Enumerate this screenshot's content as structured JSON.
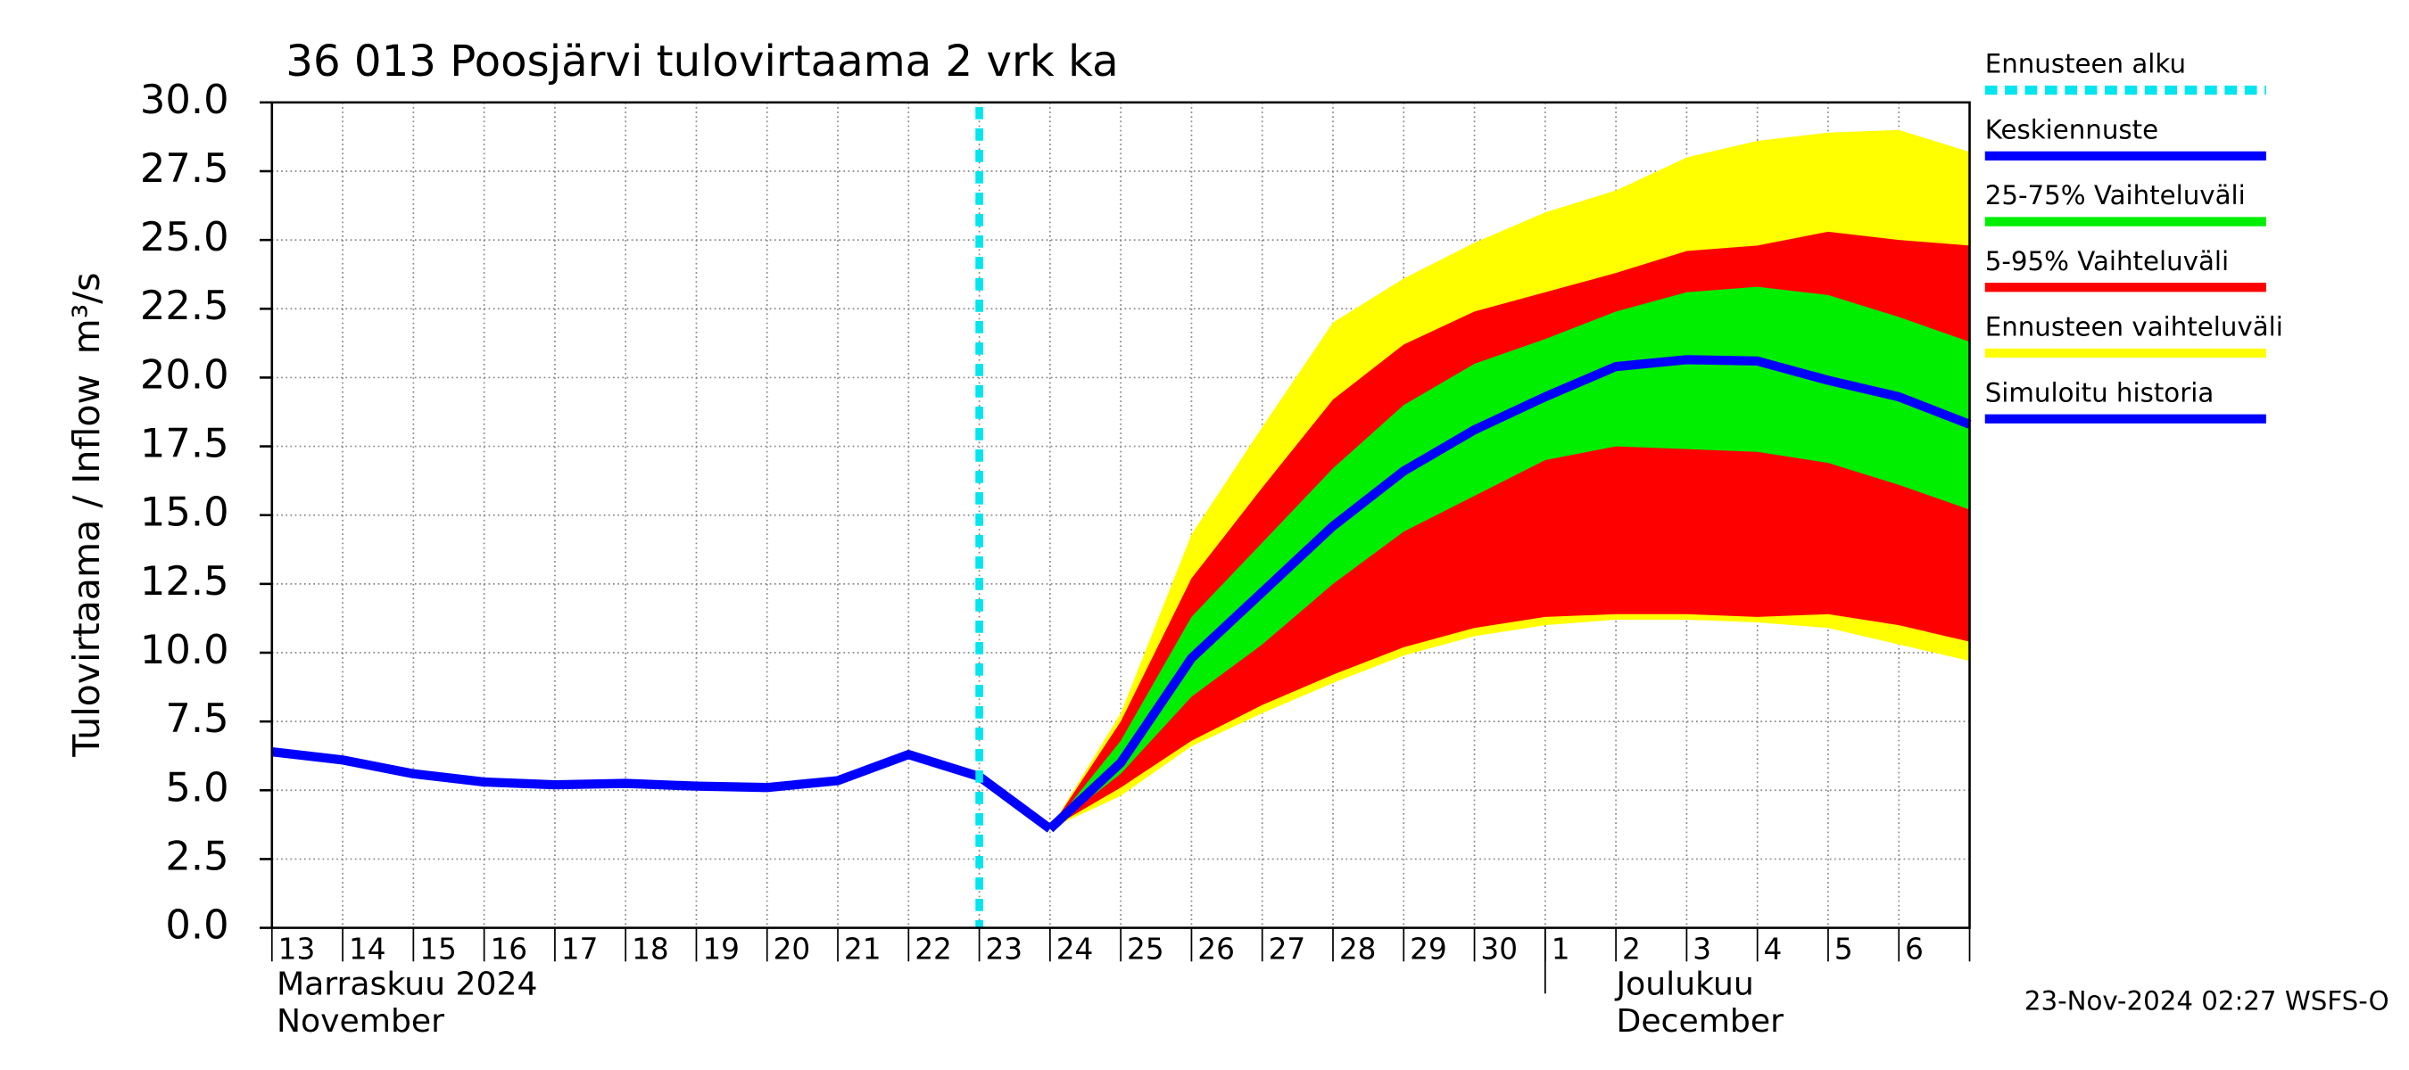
{
  "chart_data": {
    "type": "line",
    "title": "36 013 Poosjärvi tulovirtaama 2 vrk ka",
    "y_label": "Tulovirtaama / Inflow",
    "y_unit": "m³/s",
    "categories": [
      "13",
      "14",
      "15",
      "16",
      "17",
      "18",
      "19",
      "20",
      "21",
      "22",
      "23",
      "24",
      "25",
      "26",
      "27",
      "28",
      "29",
      "30",
      "1",
      "2",
      "3",
      "4",
      "5",
      "6",
      null
    ],
    "month_labels": [
      "Marraskuu 2024",
      "November",
      "Joulukuu",
      "December"
    ],
    "timestamp": "23-Nov-2024 02:27 WSFS-O",
    "ylim": [
      0,
      30
    ],
    "yticks": [
      {
        "value": 0,
        "label": "0.0"
      },
      {
        "value": 2.5,
        "label": "2.5"
      },
      {
        "value": 5,
        "label": "5.0"
      },
      {
        "value": 7.5,
        "label": "7.5"
      },
      {
        "value": 10,
        "label": "10.0"
      },
      {
        "value": 12.5,
        "label": "12.5"
      },
      {
        "value": 15,
        "label": "15.0"
      },
      {
        "value": 17.5,
        "label": "17.5"
      },
      {
        "value": 20,
        "label": "20.0"
      },
      {
        "value": 22.5,
        "label": "22.5"
      },
      {
        "value": 25,
        "label": "25.0"
      },
      {
        "value": 27.5,
        "label": "27.5"
      },
      {
        "value": 30,
        "label": "30.0"
      }
    ],
    "grid": true,
    "forecast_start": {
      "name": "Ennusteen alku",
      "color": "#00e5ee",
      "index": 10
    },
    "series": [
      {
        "name": "Keskiennuste",
        "color": "#0000ff",
        "values": [
          null,
          null,
          null,
          null,
          null,
          null,
          null,
          null,
          null,
          null,
          null,
          3.6,
          6.0,
          9.8,
          12.2,
          14.6,
          16.6,
          18.1,
          19.3,
          20.4,
          20.65,
          20.6,
          19.9,
          19.3,
          18.3
        ]
      },
      {
        "name": "Simuloitu historia",
        "color": "#0000ff",
        "values": [
          6.4,
          6.1,
          5.6,
          5.3,
          5.2,
          5.25,
          5.15,
          5.1,
          5.35,
          6.3,
          5.5,
          3.6,
          null,
          null,
          null,
          null,
          null,
          null,
          null,
          null,
          null,
          null,
          null,
          null,
          null
        ]
      }
    ],
    "bands": [
      {
        "name": "25-75% Vaihteluväli",
        "color": "#00ee00",
        "high": [
          null,
          null,
          null,
          null,
          null,
          null,
          null,
          null,
          null,
          null,
          null,
          3.6,
          6.8,
          11.3,
          14.0,
          16.7,
          19.0,
          20.5,
          21.4,
          22.4,
          23.1,
          23.3,
          23.0,
          22.2,
          21.3
        ],
        "low": [
          null,
          null,
          null,
          null,
          null,
          null,
          null,
          null,
          null,
          null,
          null,
          3.6,
          5.6,
          8.4,
          10.3,
          12.5,
          14.4,
          15.7,
          17.0,
          17.5,
          17.4,
          17.3,
          16.9,
          16.1,
          15.2
        ]
      },
      {
        "name": "5-95% Vaihteluväli",
        "color": "#ff0000",
        "high": [
          null,
          null,
          null,
          null,
          null,
          null,
          null,
          null,
          null,
          null,
          null,
          3.6,
          7.5,
          12.7,
          16.0,
          19.2,
          21.2,
          22.4,
          23.1,
          23.8,
          24.6,
          24.8,
          25.3,
          25.0,
          24.8
        ],
        "low": [
          null,
          null,
          null,
          null,
          null,
          null,
          null,
          null,
          null,
          null,
          null,
          3.6,
          5.1,
          6.8,
          8.1,
          9.2,
          10.2,
          10.9,
          11.3,
          11.4,
          11.4,
          11.3,
          11.4,
          11.0,
          10.4
        ]
      },
      {
        "name": "Ennusteen vaihteluväli",
        "color": "#ffff00",
        "high": [
          null,
          null,
          null,
          null,
          null,
          null,
          null,
          null,
          null,
          null,
          null,
          3.6,
          7.8,
          14.3,
          18.2,
          22.0,
          23.6,
          24.9,
          26.0,
          26.8,
          28.0,
          28.6,
          28.9,
          29.0,
          28.2
        ],
        "low": [
          null,
          null,
          null,
          null,
          null,
          null,
          null,
          null,
          null,
          null,
          null,
          3.6,
          4.8,
          6.6,
          7.8,
          8.9,
          9.9,
          10.6,
          11.0,
          11.2,
          11.2,
          11.1,
          10.9,
          10.3,
          9.7
        ]
      }
    ]
  }
}
